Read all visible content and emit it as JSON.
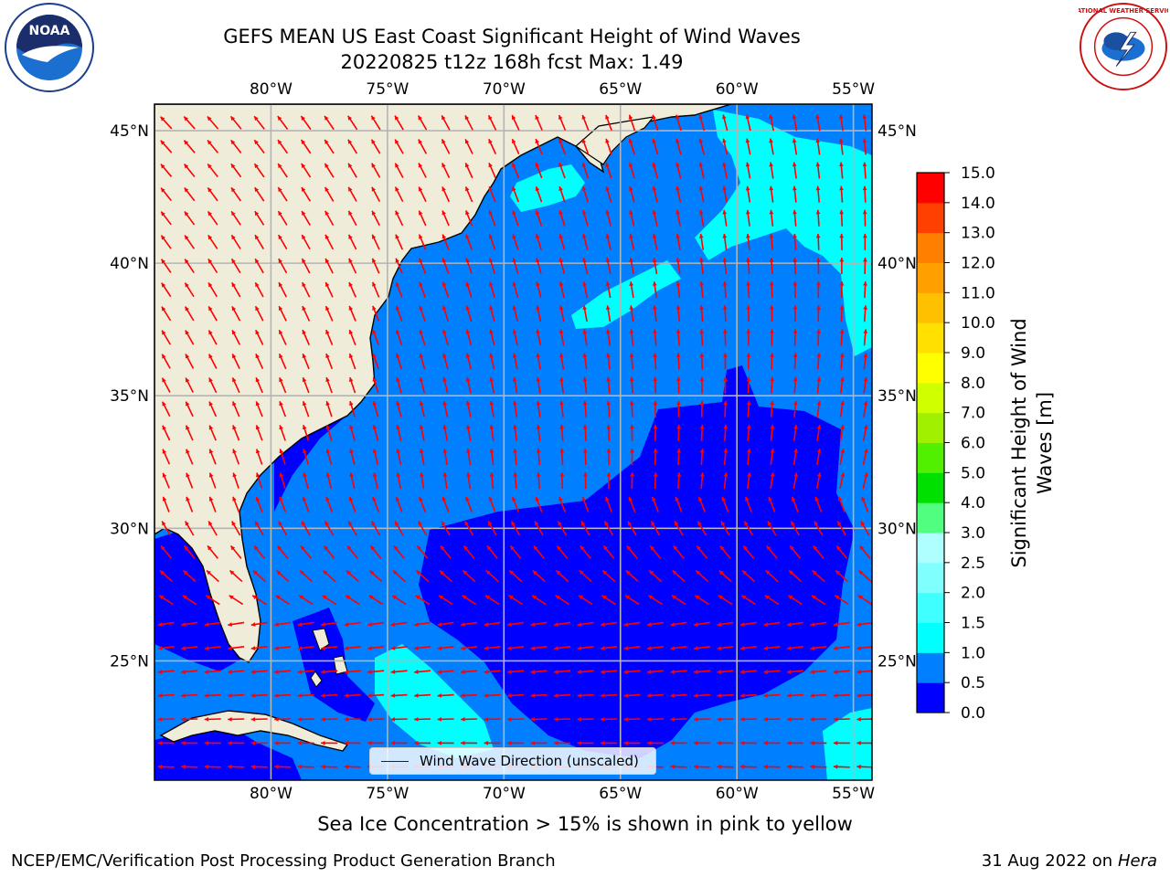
{
  "header": {
    "title_line1": "GEFS MEAN US East Coast Significant Height of Wind Waves",
    "title_line2": "20220825 t12z 168h fcst   Max: 1.49"
  },
  "logos": {
    "left": {
      "name": "noaa-logo",
      "text": "NOAA"
    },
    "right": {
      "name": "nws-logo",
      "text": "NATIONAL WEATHER SERVICE"
    }
  },
  "map": {
    "lon_labels": [
      "80°W",
      "75°W",
      "70°W",
      "65°W",
      "60°W",
      "55°W"
    ],
    "lat_labels": [
      "45°N",
      "40°N",
      "35°N",
      "30°N",
      "25°N"
    ],
    "lon_values": [
      -80,
      -75,
      -70,
      -65,
      -60,
      -55
    ],
    "lat_values": [
      45,
      40,
      35,
      30,
      25
    ],
    "extent": {
      "lon_min": -85,
      "lon_max": -54.2,
      "lat_min": 20.5,
      "lat_max": 46
    },
    "land_color": "#efedda",
    "arrow_color": "#ff0000",
    "grid_color": "#b4b4b4",
    "legend_label": "Wind Wave Direction (unscaled)"
  },
  "colorbar": {
    "label_line1": "Significant Height of Wind",
    "label_line2": "Waves [m]",
    "ticks": [
      "0.0",
      "0.5",
      "1.0",
      "1.5",
      "2.0",
      "2.5",
      "3.0",
      "4.0",
      "5.0",
      "6.0",
      "7.0",
      "8.0",
      "9.0",
      "10.0",
      "11.0",
      "12.0",
      "13.0",
      "14.0",
      "15.0"
    ],
    "colors": [
      "#0000ff",
      "#0080ff",
      "#00ffff",
      "#40ffff",
      "#80ffff",
      "#b0ffff",
      "#50ff80",
      "#00e000",
      "#50f000",
      "#a0f000",
      "#d0ff00",
      "#ffff00",
      "#ffe000",
      "#ffc000",
      "#ffa000",
      "#ff8000",
      "#ff4000",
      "#ff0000"
    ]
  },
  "note": "Sea Ice Concentration > 15% is shown in pink to yellow",
  "footer": {
    "left": "NCEP/EMC/Verification Post Processing Product Generation Branch",
    "right_date": "31 Aug 2022 on",
    "right_host": "Hera"
  }
}
